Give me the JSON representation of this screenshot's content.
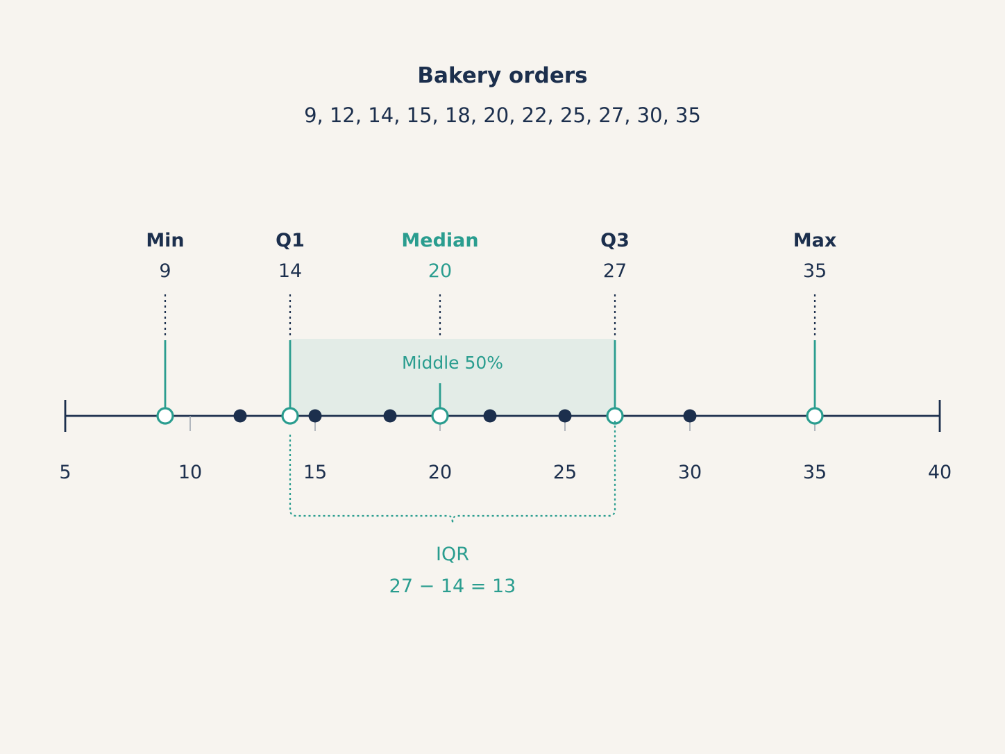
{
  "title": "Bakery orders",
  "dataset_text": "9, 12, 14, 15, 18, 20, 22, 25, 27, 30, 35",
  "colors": {
    "background": "#f7f4ef",
    "ink": "#1c2f4d",
    "accent": "#2a9d8f",
    "band_fill": "#e3ece7"
  },
  "axis": {
    "min": 5,
    "max": 40,
    "ticks": [
      {
        "value": 5,
        "label": "5"
      },
      {
        "value": 10,
        "label": "10"
      },
      {
        "value": 15,
        "label": "15"
      },
      {
        "value": 20,
        "label": "20"
      },
      {
        "value": 25,
        "label": "25"
      },
      {
        "value": 30,
        "label": "30"
      },
      {
        "value": 35,
        "label": "35"
      },
      {
        "value": 40,
        "label": "40"
      }
    ]
  },
  "points": [
    9,
    12,
    14,
    15,
    18,
    20,
    22,
    25,
    27,
    30,
    35
  ],
  "summary": [
    {
      "key": "min",
      "name": "Min",
      "value": 9,
      "value_label": "9",
      "accent": false
    },
    {
      "key": "q1",
      "name": "Q1",
      "value": 14,
      "value_label": "14",
      "accent": false
    },
    {
      "key": "median",
      "name": "Median",
      "value": 20,
      "value_label": "20",
      "accent": true
    },
    {
      "key": "q3",
      "name": "Q3",
      "value": 27,
      "value_label": "27",
      "accent": false
    },
    {
      "key": "max",
      "name": "Max",
      "value": 35,
      "value_label": "35",
      "accent": false
    }
  ],
  "band": {
    "from": 14,
    "to": 27,
    "label": "Middle 50%"
  },
  "iqr": {
    "label": "IQR",
    "calculation": "27 − 14 = 13"
  }
}
